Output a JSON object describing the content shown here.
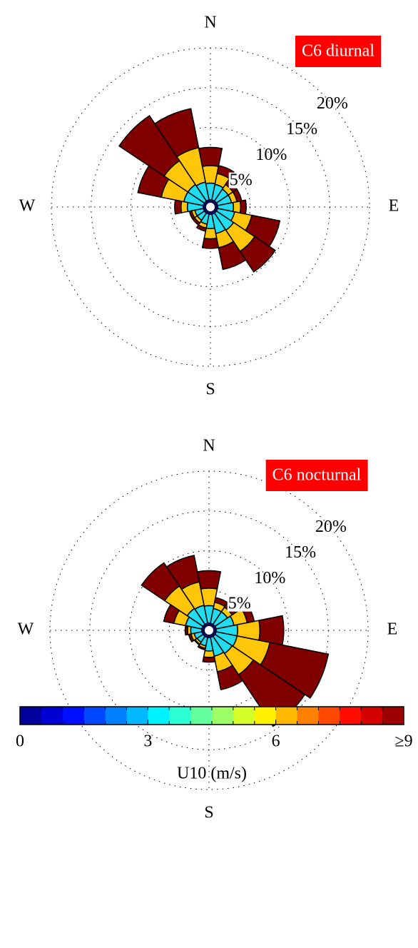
{
  "chart_data": [
    {
      "type": "windrose",
      "title": "C6 diurnal",
      "categories": [
        "N",
        null,
        null,
        null,
        "E",
        null,
        null,
        null,
        "S",
        null,
        null,
        null,
        "W",
        null,
        null,
        null
      ],
      "series": [
        {
          "color": "#22dcf0",
          "values": [
            3,
            2.9,
            2.7,
            2.7,
            2.9,
            3.1,
            3.5,
            3.4,
            2.7,
            2.2,
            2,
            2,
            2.9,
            3.4,
            3.4,
            3.2
          ]
        },
        {
          "color": "#ffc60a",
          "values": [
            2.2,
            1.4,
            0.7,
            0.7,
            0.9,
            2.2,
            3.2,
            1.8,
            1.3,
            0.5,
            0.4,
            0.4,
            0.8,
            2.9,
            3.6,
            4.4
          ]
        },
        {
          "color": "#800000",
          "values": [
            2.3,
            1,
            0.6,
            0.6,
            0.7,
            3.6,
            3.1,
            2.8,
            1.2,
            0.4,
            0.3,
            0.3,
            0.8,
            3,
            6.8,
            5
          ]
        }
      ],
      "rlim": [
        0,
        20
      ],
      "rticks": [
        {
          "value": 5,
          "label": "5%"
        },
        {
          "value": 10,
          "label": "10%"
        },
        {
          "value": 15,
          "label": "15%"
        },
        {
          "value": 20,
          "label": "20%"
        }
      ]
    },
    {
      "type": "windrose",
      "title": "C6 nocturnal",
      "categories": [
        "N",
        null,
        null,
        null,
        "E",
        null,
        null,
        null,
        "S",
        null,
        null,
        null,
        "W",
        null,
        null,
        null
      ],
      "series": [
        {
          "color": "#22dcf0",
          "values": [
            3.1,
            2.8,
            2.8,
            3.2,
            3.6,
            3.6,
            3.5,
            3.3,
            2.6,
            2,
            1.8,
            1.9,
            2.3,
            3,
            3.3,
            3.2
          ]
        },
        {
          "color": "#ffc60a",
          "values": [
            2.2,
            0.8,
            0.7,
            1.7,
            2.8,
            4.2,
            3.2,
            2,
            0.8,
            0.3,
            0.3,
            0.4,
            0.4,
            1.5,
            3.4,
            3
          ]
        },
        {
          "color": "#800000",
          "values": [
            2.2,
            0.6,
            0.5,
            0.9,
            3,
            7.5,
            7.8,
            2.3,
            0.6,
            0.2,
            0.1,
            0.3,
            0.3,
            1.3,
            3.5,
            3.4
          ]
        }
      ],
      "rlim": [
        0,
        20
      ],
      "rticks": [
        {
          "value": 5,
          "label": "5%"
        },
        {
          "value": 10,
          "label": "10%"
        },
        {
          "value": 15,
          "label": "15%"
        },
        {
          "value": 20,
          "label": "20%"
        }
      ]
    },
    {
      "type": "colorbar",
      "colormap": "jet",
      "xlim": [
        0,
        9
      ],
      "xticks": [
        0,
        3,
        6,
        {
          "value": 9,
          "label": "≥9"
        }
      ],
      "xlabel": "U10 (m/s)"
    }
  ]
}
